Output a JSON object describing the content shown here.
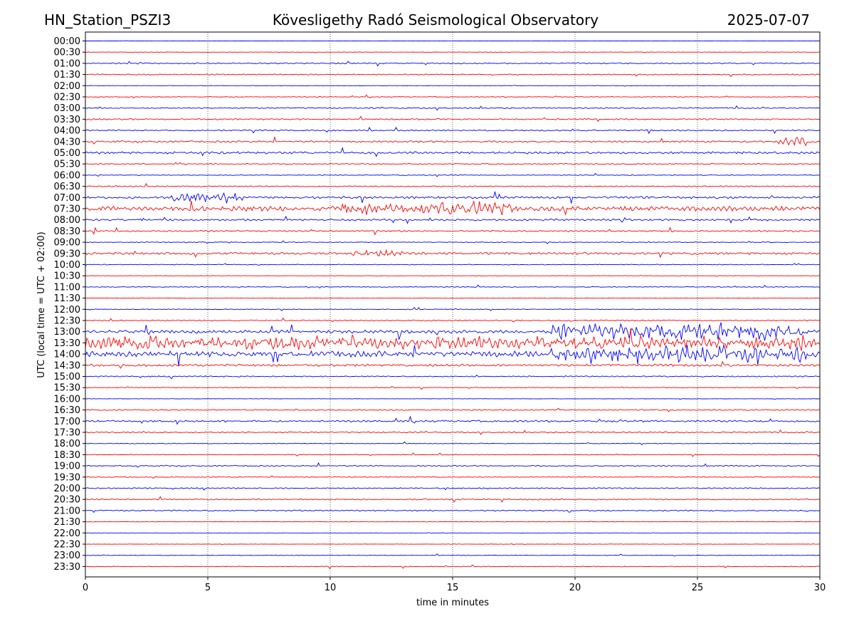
{
  "header": {
    "station": "HN_Station_PSZI3",
    "observatory": "Kövesligethy Radó Seismological Observatory",
    "date": "2025-07-07"
  },
  "chart_data": {
    "type": "line",
    "title": "Kövesligethy Radó Seismological Observatory",
    "xlabel": "time in minutes",
    "ylabel": "UTC (local time = UTC + 02:00)",
    "xlim": [
      0,
      30
    ],
    "x_ticks": [
      "0",
      "5",
      "10",
      "15",
      "20",
      "25",
      "30"
    ],
    "x_tick_values": [
      0,
      5,
      10,
      15,
      20,
      25,
      30
    ],
    "grid": "vertical dotted at each x tick",
    "row_labels": [
      "00:00",
      "00:30",
      "01:00",
      "01:30",
      "02:00",
      "02:30",
      "03:00",
      "03:30",
      "04:00",
      "04:30",
      "05:00",
      "05:30",
      "06:00",
      "06:30",
      "07:00",
      "07:30",
      "08:00",
      "08:30",
      "09:00",
      "09:30",
      "10:00",
      "10:30",
      "11:00",
      "11:30",
      "12:00",
      "12:30",
      "13:00",
      "13:30",
      "14:00",
      "14:30",
      "15:00",
      "15:30",
      "16:00",
      "16:30",
      "17:00",
      "17:30",
      "18:00",
      "18:30",
      "19:00",
      "19:30",
      "20:00",
      "20:30",
      "21:00",
      "21:30",
      "22:00",
      "22:30",
      "23:00",
      "23:30"
    ],
    "trace_colors": [
      "#0000ff",
      "#ff0000"
    ],
    "trace_color_rule": "row at HH:00 is blue, row at HH:30 is red",
    "activity_levels": [
      0.05,
      0.1,
      0.3,
      0.3,
      0.1,
      0.2,
      0.3,
      0.35,
      0.35,
      0.45,
      0.6,
      0.3,
      0.2,
      0.3,
      0.6,
      1.2,
      0.5,
      0.4,
      0.2,
      0.6,
      0.2,
      0.1,
      0.2,
      0.1,
      0.2,
      0.3,
      0.8,
      1.5,
      1.5,
      0.6,
      0.3,
      0.2,
      0.1,
      0.3,
      0.5,
      0.3,
      0.2,
      0.2,
      0.3,
      0.2,
      0.3,
      0.3,
      0.35,
      0.1,
      0.05,
      0.1,
      0.15,
      0.2
    ],
    "notable_events": [
      {
        "row": "04:30",
        "minute_start": 28.3,
        "minute_end": 29.5,
        "amplitude": 2.5
      },
      {
        "row": "07:00",
        "minute_start": 3.5,
        "minute_end": 6.5,
        "amplitude": 2.5
      },
      {
        "row": "07:30",
        "minute_start": 10.5,
        "minute_end": 17.5,
        "amplitude": 3.0
      },
      {
        "row": "09:30",
        "minute_start": 10.8,
        "minute_end": 13.0,
        "amplitude": 1.5
      },
      {
        "row": "13:00",
        "minute_start": 19.0,
        "minute_end": 29.5,
        "amplitude": 5.0
      },
      {
        "row": "13:30",
        "minute_start": 0.0,
        "minute_end": 30.0,
        "amplitude": 2.5
      },
      {
        "row": "14:00",
        "minute_start": 19.0,
        "minute_end": 29.5,
        "amplitude": 4.0
      }
    ]
  }
}
